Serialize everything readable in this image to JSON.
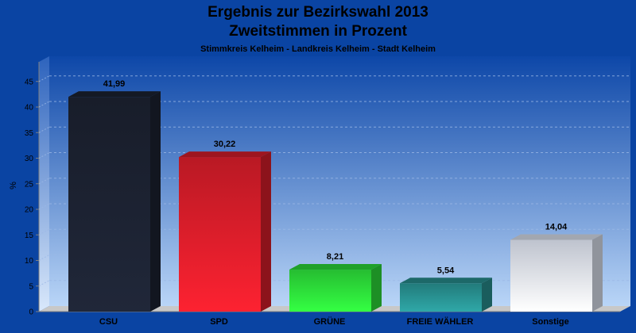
{
  "chart_data": {
    "type": "bar",
    "title": "Ergebnis zur Bezirkswahl 2013",
    "title2": "Zweitstimmen in Prozent",
    "subtitle": "Stimmkreis Kelheim - Landkreis Kelheim - Stadt Kelheim",
    "ylabel": "%",
    "xlabel": "",
    "ylim": [
      0,
      48
    ],
    "yticks": [
      0,
      5,
      10,
      15,
      20,
      25,
      30,
      35,
      40,
      45
    ],
    "grid": true,
    "categories": [
      "CSU",
      "SPD",
      "GRÜNE",
      "FREIE WÄHLER",
      "Sonstige"
    ],
    "values": [
      41.99,
      30.22,
      8.21,
      5.54,
      14.04
    ],
    "value_labels": [
      "41,99",
      "30,22",
      "8,21",
      "5,54",
      "14,04"
    ],
    "colors": [
      "#1d2333",
      "#e21e2c",
      "#2ee63c",
      "#2a9696",
      "#e8eefb"
    ]
  }
}
